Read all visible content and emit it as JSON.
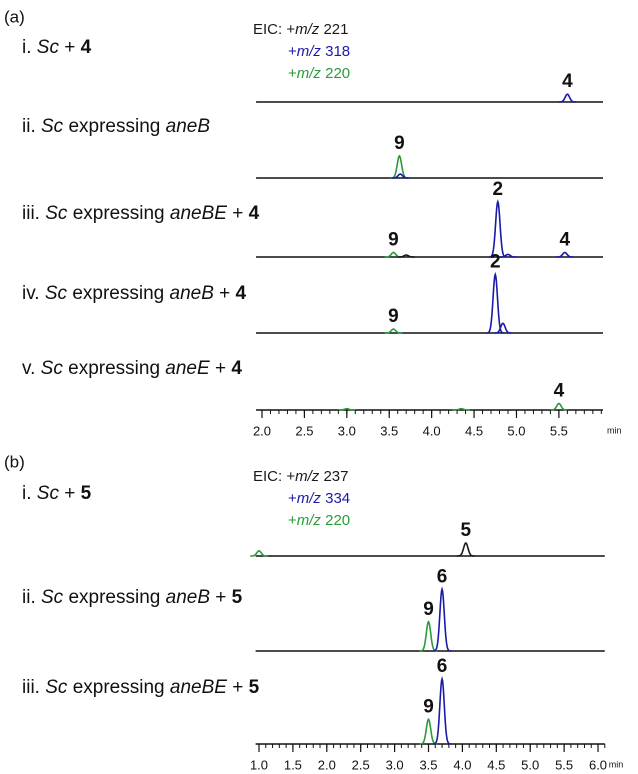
{
  "chart_data": [
    {
      "type": "chromatogram",
      "panel": "(a)",
      "unit": "min",
      "xlim": [
        1.93,
        6.02
      ],
      "xticks": [
        {
          "value": 2,
          "label": "2.0"
        },
        2.5,
        {
          "value": 3,
          "label": "3.0"
        },
        3.5,
        {
          "value": 4,
          "label": "4.0"
        },
        4.5,
        {
          "value": 5,
          "label": "5.0"
        },
        5.5
      ],
      "minor_step": 0.1,
      "legend": [
        {
          "color": "#1a1a1a",
          "parts": [
            {
              "text": "EIC: +"
            },
            {
              "text": "m/z",
              "style": "italic"
            },
            {
              "text": " 221"
            }
          ]
        },
        {
          "color": "#1a1aa8",
          "parts": [
            {
              "text": "+"
            },
            {
              "text": "m/z",
              "style": "italic"
            },
            {
              "text": " 318"
            }
          ]
        },
        {
          "color": "#2a9a3a",
          "parts": [
            {
              "text": "+"
            },
            {
              "text": "m/z",
              "style": "italic"
            },
            {
              "text": " 220"
            }
          ]
        }
      ],
      "rows": [
        {
          "label": [
            {
              "text": "i. "
            },
            {
              "text": "Sc",
              "style": "italic"
            },
            {
              "text": " + "
            },
            {
              "text": "4",
              "style": "bold"
            }
          ],
          "peaks": [
            {
              "x": 5.6,
              "intensity": 12,
              "color": "#1a1aa8",
              "label": "4"
            }
          ]
        },
        {
          "label": [
            {
              "text": "ii. "
            },
            {
              "text": "Sc",
              "style": "italic"
            },
            {
              "text": " expressing "
            },
            {
              "text": "aneB",
              "style": "italic"
            }
          ],
          "peaks": [
            {
              "x": 3.62,
              "intensity": 34,
              "color": "#2a9a3a",
              "label": "9"
            },
            {
              "x": 3.63,
              "intensity": 6,
              "color": "#1a1aa8"
            }
          ]
        },
        {
          "label": [
            {
              "text": "iii. "
            },
            {
              "text": "Sc",
              "style": "italic"
            },
            {
              "text": " expressing "
            },
            {
              "text": "aneBE",
              "style": "italic"
            },
            {
              "text": " + "
            },
            {
              "text": "4",
              "style": "bold"
            }
          ],
          "peaks": [
            {
              "x": 3.55,
              "intensity": 7,
              "color": "#2a9a3a",
              "label": "9"
            },
            {
              "x": 3.7,
              "intensity": 3,
              "color": "#1a1a1a"
            },
            {
              "x": 4.78,
              "intensity": 85,
              "color": "#1a1aa8",
              "label": "2"
            },
            {
              "x": 4.9,
              "intensity": 4,
              "color": "#1a1aa8"
            },
            {
              "x": 5.57,
              "intensity": 7,
              "color": "#1a1aa8",
              "label": "4"
            }
          ]
        },
        {
          "label": [
            {
              "text": "iv. "
            },
            {
              "text": "Sc",
              "style": "italic"
            },
            {
              "text": " expressing "
            },
            {
              "text": "aneB",
              "style": "italic"
            },
            {
              "text": " + "
            },
            {
              "text": "4",
              "style": "bold"
            }
          ],
          "peaks": [
            {
              "x": 3.55,
              "intensity": 6,
              "color": "#2a9a3a",
              "label": "9"
            },
            {
              "x": 4.75,
              "intensity": 90,
              "color": "#1a1aa8",
              "label": "2"
            },
            {
              "x": 4.84,
              "intensity": 15,
              "color": "#1a1aa8"
            }
          ]
        },
        {
          "label": [
            {
              "text": "v. "
            },
            {
              "text": "Sc",
              "style": "italic"
            },
            {
              "text": " expressing "
            },
            {
              "text": "aneE",
              "style": "italic"
            },
            {
              "text": " + "
            },
            {
              "text": "4",
              "style": "bold"
            }
          ],
          "peaks": [
            {
              "x": 3.0,
              "intensity": 2,
              "color": "#2a9a3a"
            },
            {
              "x": 4.35,
              "intensity": 2,
              "color": "#2a9a3a"
            },
            {
              "x": 5.5,
              "intensity": 10,
              "color": "#2a9a3a",
              "label": "4"
            }
          ]
        }
      ]
    },
    {
      "type": "chromatogram",
      "panel": "(b)",
      "unit": "min",
      "xlim": [
        0.95,
        6.1
      ],
      "xticks": [
        {
          "value": 1,
          "label": "1.0"
        },
        1.5,
        {
          "value": 2,
          "label": "2.0"
        },
        2.5,
        {
          "value": 3,
          "label": "3.0"
        },
        3.5,
        {
          "value": 4,
          "label": "4.0"
        },
        4.5,
        {
          "value": 5,
          "label": "5.0"
        },
        5.5,
        {
          "value": 6,
          "label": "6.0"
        }
      ],
      "minor_step": 0.1,
      "legend": [
        {
          "color": "#1a1a1a",
          "parts": [
            {
              "text": "EIC: +"
            },
            {
              "text": "m/z",
              "style": "italic"
            },
            {
              "text": " 237"
            }
          ]
        },
        {
          "color": "#1a1aa8",
          "parts": [
            {
              "text": "+"
            },
            {
              "text": "m/z",
              "style": "italic"
            },
            {
              "text": " 334"
            }
          ]
        },
        {
          "color": "#2a9a3a",
          "parts": [
            {
              "text": "+"
            },
            {
              "text": "m/z",
              "style": "italic"
            },
            {
              "text": " 220"
            }
          ]
        }
      ],
      "rows": [
        {
          "label": [
            {
              "text": "i. "
            },
            {
              "text": "Sc",
              "style": "italic"
            },
            {
              "text": " + "
            },
            {
              "text": "5",
              "style": "bold"
            }
          ],
          "peaks": [
            {
              "x": 1.0,
              "intensity": 8,
              "color": "#2a9a3a"
            },
            {
              "x": 4.05,
              "intensity": 20,
              "color": "#1a1a1a",
              "label": "5"
            }
          ]
        },
        {
          "label": [
            {
              "text": "ii. "
            },
            {
              "text": "Sc",
              "style": "italic"
            },
            {
              "text": " expressing "
            },
            {
              "text": "aneB",
              "style": "italic"
            },
            {
              "text": " + "
            },
            {
              "text": "5",
              "style": "bold"
            }
          ],
          "peaks": [
            {
              "x": 3.5,
              "intensity": 45,
              "color": "#2a9a3a",
              "label": "9"
            },
            {
              "x": 3.7,
              "intensity": 95,
              "color": "#1a1aa8",
              "label": "6"
            }
          ]
        },
        {
          "label": [
            {
              "text": "iii. "
            },
            {
              "text": "Sc",
              "style": "italic"
            },
            {
              "text": " expressing "
            },
            {
              "text": "aneBE",
              "style": "italic"
            },
            {
              "text": " + "
            },
            {
              "text": "5",
              "style": "bold"
            }
          ],
          "peaks": [
            {
              "x": 3.5,
              "intensity": 38,
              "color": "#2a9a3a",
              "label": "9"
            },
            {
              "x": 3.7,
              "intensity": 100,
              "color": "#1a1aa8",
              "label": "6"
            }
          ]
        }
      ]
    }
  ]
}
